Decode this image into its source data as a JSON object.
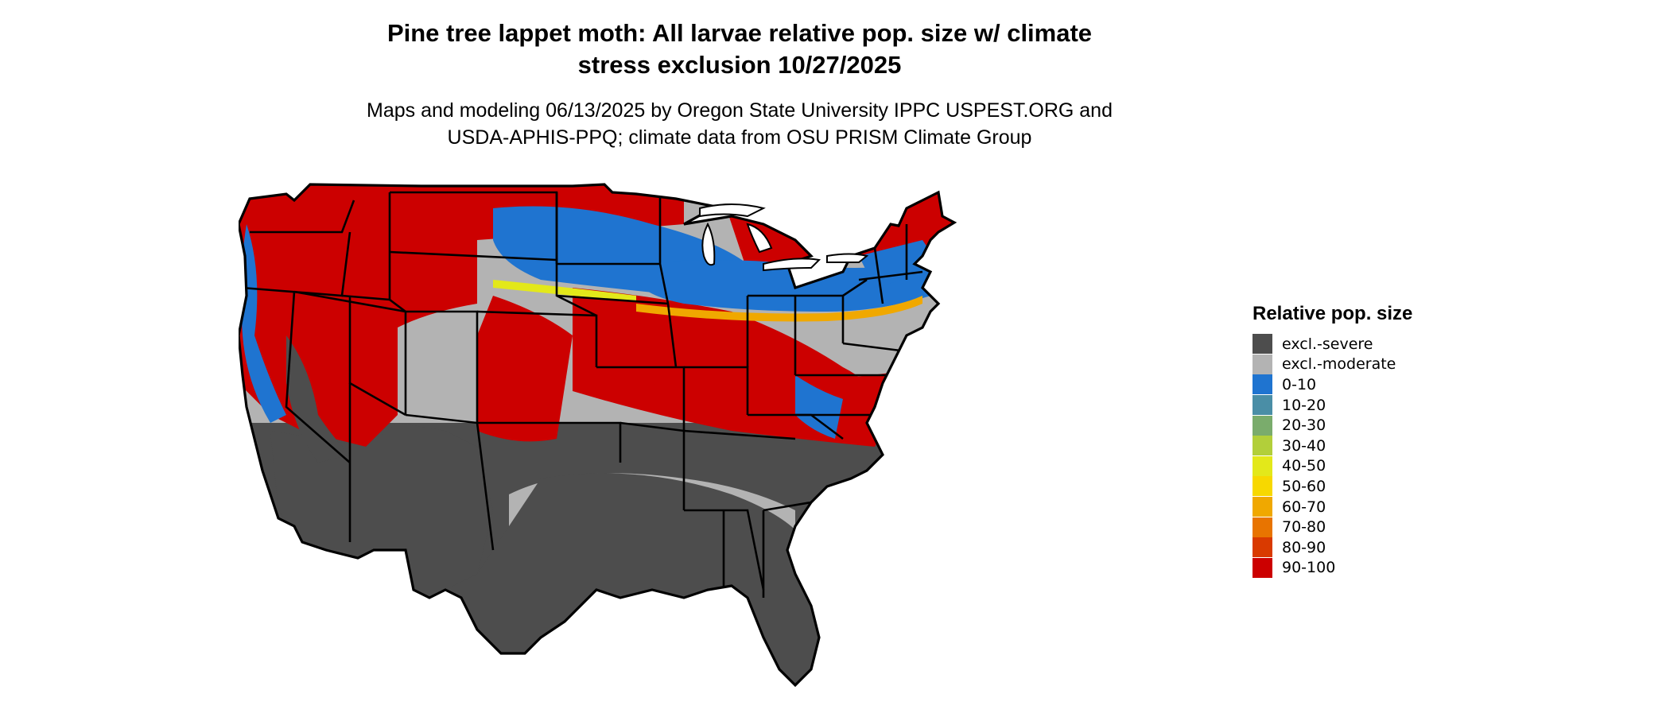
{
  "title_line1": "Pine tree lappet moth: All larvae relative pop. size w/ climate",
  "title_line2": "stress exclusion 10/27/2025",
  "subtitle_line1": "Maps and modeling 06/13/2025 by Oregon State University IPPC USPEST.ORG and",
  "subtitle_line2": "USDA-APHIS-PPQ; climate data from OSU PRISM Climate Group",
  "legend": {
    "title": "Relative pop. size",
    "items": [
      {
        "label": "excl.-severe",
        "color": "#4d4d4d"
      },
      {
        "label": "excl.-moderate",
        "color": "#b3b3b3"
      },
      {
        "label": "0-10",
        "color": "#1f74d0"
      },
      {
        "label": "10-20",
        "color": "#4a8ea6"
      },
      {
        "label": "20-30",
        "color": "#7aac6c"
      },
      {
        "label": "30-40",
        "color": "#b2cf3a"
      },
      {
        "label": "40-50",
        "color": "#e3e81a"
      },
      {
        "label": "50-60",
        "color": "#f7d800"
      },
      {
        "label": "60-70",
        "color": "#f0a800"
      },
      {
        "label": "70-80",
        "color": "#e87400"
      },
      {
        "label": "80-90",
        "color": "#d93a00"
      },
      {
        "label": "90-100",
        "color": "#cc0000"
      }
    ]
  },
  "colors": {
    "severe": "#4d4d4d",
    "moderate": "#b3b3b3",
    "low": "#1f74d0",
    "mid": "#f0a800",
    "high": "#cc0000",
    "border": "#000000"
  }
}
